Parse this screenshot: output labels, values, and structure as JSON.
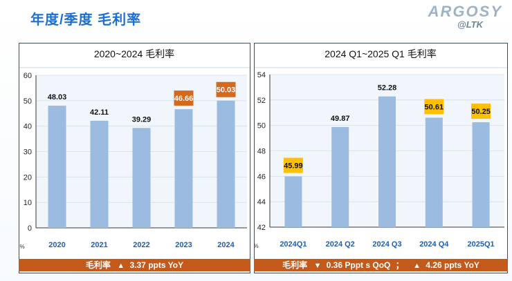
{
  "slide": {
    "title": "年度/季度 毛利率"
  },
  "logo": {
    "brand": "ARGOSY",
    "sub": "@LTK"
  },
  "colors": {
    "bar": "#9bbbe1",
    "highlight_orange": "#d2691e",
    "highlight_yellow": "#ffc000",
    "summary_bg": "#c35a1c"
  },
  "chart_data": [
    {
      "type": "bar",
      "title": "2020~2024 毛利率",
      "ylabel": "%",
      "categories": [
        "2020",
        "2021",
        "2022",
        "2023",
        "2024"
      ],
      "values": [
        48.03,
        42.11,
        39.29,
        46.66,
        50.03
      ],
      "ylim": [
        0,
        60
      ],
      "yticks": [
        0,
        10,
        20,
        30,
        40,
        50,
        60
      ],
      "highlight": [
        null,
        null,
        null,
        "orange",
        "orange"
      ]
    },
    {
      "type": "bar",
      "title": "2024 Q1~2025 Q1  毛利率",
      "ylabel": "%",
      "categories": [
        "2024Q1",
        "2024 Q2",
        "2024 Q3",
        "2024 Q4",
        "2025Q1"
      ],
      "values": [
        45.99,
        49.87,
        52.28,
        50.61,
        50.25
      ],
      "ylim": [
        42,
        54
      ],
      "yticks": [
        42,
        44,
        46,
        48,
        50,
        52,
        54
      ],
      "highlight": [
        "yellow",
        null,
        null,
        "yellow",
        "yellow"
      ]
    }
  ],
  "summary": {
    "left": {
      "label": "毛利率",
      "arrow": "▲",
      "text": "3.37  ppts   YoY"
    },
    "right": {
      "label": "毛利率",
      "arrow1": "▼",
      "text1": "0.36 Pppt s QoQ",
      "sep": "；",
      "arrow2": "▲",
      "text2": "4.26 ppts YoY"
    }
  }
}
